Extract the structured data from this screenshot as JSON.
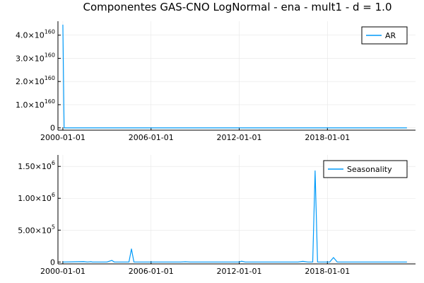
{
  "chart_data": [
    {
      "type": "line",
      "title": "Componentes GAS-CNO LogNormal - ena - mult1 - d = 1.0",
      "xlabel": "",
      "ylabel": "",
      "x_ticks": [
        "2000-01-01",
        "2006-01-01",
        "2012-01-01",
        "2018-01-01"
      ],
      "x_range": [
        "1999-09-01",
        "2023-12-31"
      ],
      "y_ticks": [
        {
          "value": 0,
          "base": "0",
          "exp": ""
        },
        {
          "value": 1e+160,
          "base": "1.0×10",
          "exp": "160"
        },
        {
          "value": 2e+160,
          "base": "2.0×10",
          "exp": "160"
        },
        {
          "value": 3e+160,
          "base": "3.0×10",
          "exp": "160"
        },
        {
          "value": 4e+160,
          "base": "4.0×10",
          "exp": "160"
        }
      ],
      "ylim": [
        -1e+159,
        4.6e+160
      ],
      "grid": true,
      "legend_position": "top-right",
      "series": [
        {
          "name": "AR",
          "color": "#009af9",
          "points": [
            [
              "2000-01-01",
              4.45e+160
            ],
            [
              "2000-02-01",
              0
            ],
            [
              "2023-06-01",
              0
            ]
          ]
        }
      ]
    },
    {
      "type": "line",
      "title": "",
      "xlabel": "",
      "ylabel": "",
      "x_ticks": [
        "2000-01-01",
        "2006-01-01",
        "2012-01-01",
        "2018-01-01"
      ],
      "x_range": [
        "1999-09-01",
        "2023-12-31"
      ],
      "y_ticks": [
        {
          "value": 0,
          "base": "0",
          "exp": ""
        },
        {
          "value": 500000,
          "base": "5.00×10",
          "exp": "5"
        },
        {
          "value": 1000000,
          "base": "1.00×10",
          "exp": "6"
        },
        {
          "value": 1500000,
          "base": "1.50×10",
          "exp": "6"
        }
      ],
      "ylim": [
        -30000,
        1680000
      ],
      "grid": true,
      "legend_position": "top-right",
      "series": [
        {
          "name": "Seasonality",
          "color": "#009af9",
          "points": [
            [
              "2000-01-01",
              0
            ],
            [
              "2001-06-01",
              6000
            ],
            [
              "2001-09-01",
              0
            ],
            [
              "2001-12-01",
              5000
            ],
            [
              "2002-01-01",
              0
            ],
            [
              "2003-01-01",
              0
            ],
            [
              "2003-05-01",
              25000
            ],
            [
              "2003-07-01",
              0
            ],
            [
              "2004-07-01",
              0
            ],
            [
              "2004-09-01",
              205000
            ],
            [
              "2004-11-01",
              0
            ],
            [
              "2008-01-01",
              0
            ],
            [
              "2008-05-01",
              4000
            ],
            [
              "2008-09-01",
              0
            ],
            [
              "2012-01-01",
              0
            ],
            [
              "2012-03-01",
              12000
            ],
            [
              "2012-06-01",
              0
            ],
            [
              "2016-01-01",
              0
            ],
            [
              "2016-05-01",
              10000
            ],
            [
              "2016-09-01",
              0
            ],
            [
              "2017-01-01",
              0
            ],
            [
              "2017-03-01",
              1430000
            ],
            [
              "2017-05-01",
              0
            ],
            [
              "2018-03-01",
              0
            ],
            [
              "2018-06-01",
              70000
            ],
            [
              "2018-09-01",
              0
            ],
            [
              "2023-06-01",
              0
            ]
          ]
        }
      ]
    }
  ]
}
